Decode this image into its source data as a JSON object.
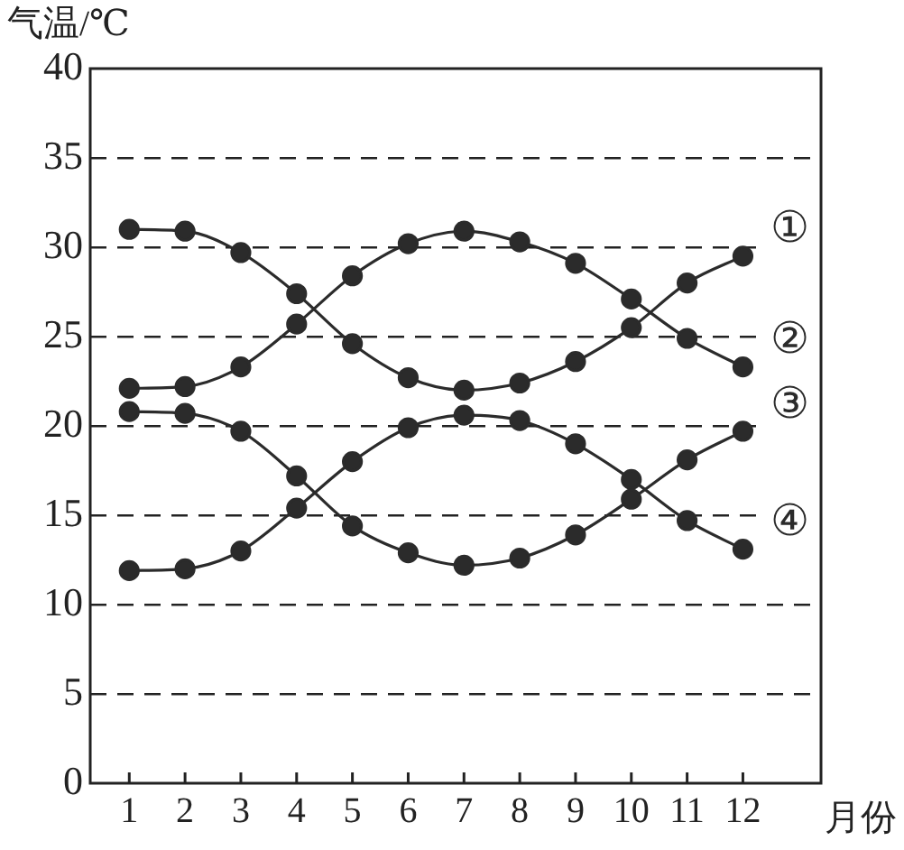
{
  "chart_data": {
    "type": "line",
    "ylabel": "气温/℃",
    "xlabel": "月份",
    "x": [
      1,
      2,
      3,
      4,
      5,
      6,
      7,
      8,
      9,
      10,
      11,
      12
    ],
    "xlim": [
      0.3,
      13.4
    ],
    "xticks": [
      1,
      2,
      3,
      4,
      5,
      6,
      7,
      8,
      9,
      10,
      11,
      12
    ],
    "ylim": [
      0,
      40
    ],
    "yticks": [
      0,
      5,
      10,
      15,
      20,
      25,
      30,
      35,
      40
    ],
    "grid": "y",
    "legend": false,
    "marker": "circle",
    "line_style": "solid",
    "series": [
      {
        "name": "①",
        "color": "#2b2b2b",
        "values": [
          31.0,
          30.9,
          29.7,
          27.4,
          24.6,
          22.7,
          22.0,
          22.4,
          23.6,
          25.5,
          28.0,
          29.5
        ]
      },
      {
        "name": "②",
        "color": "#2b2b2b",
        "values": [
          22.1,
          22.2,
          23.3,
          25.7,
          28.4,
          30.2,
          30.9,
          30.3,
          29.1,
          27.1,
          24.9,
          23.3
        ]
      },
      {
        "name": "③",
        "color": "#2b2b2b",
        "values": [
          20.8,
          20.7,
          19.7,
          17.2,
          14.4,
          12.9,
          12.2,
          12.6,
          13.9,
          15.9,
          18.1,
          19.7
        ]
      },
      {
        "name": "④",
        "color": "#2b2b2b",
        "values": [
          11.9,
          12.0,
          13.0,
          15.4,
          18.0,
          19.9,
          20.6,
          20.3,
          19.0,
          17.0,
          14.7,
          13.1
        ]
      }
    ]
  }
}
